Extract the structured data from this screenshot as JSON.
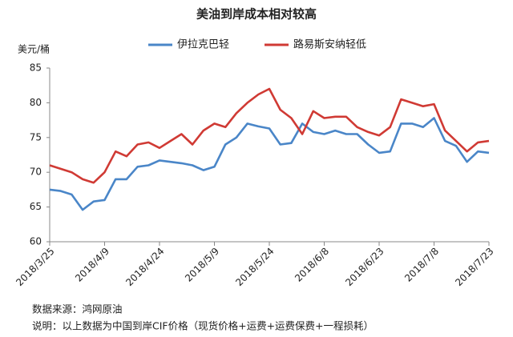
{
  "chart_data": {
    "type": "line",
    "title": "美油到岸成本相对较高",
    "y_label": "美元/桶",
    "x": [
      "2018/3/25",
      "2018/3/28",
      "2018/3/31",
      "2018/4/3",
      "2018/4/6",
      "2018/4/9",
      "2018/4/12",
      "2018/4/15",
      "2018/4/18",
      "2018/4/21",
      "2018/4/24",
      "2018/4/27",
      "2018/4/30",
      "2018/5/3",
      "2018/5/6",
      "2018/5/9",
      "2018/5/12",
      "2018/5/15",
      "2018/5/18",
      "2018/5/21",
      "2018/5/24",
      "2018/5/27",
      "2018/5/30",
      "2018/6/2",
      "2018/6/5",
      "2018/6/8",
      "2018/6/11",
      "2018/6/14",
      "2018/6/17",
      "2018/6/20",
      "2018/6/23",
      "2018/6/26",
      "2018/6/29",
      "2018/7/2",
      "2018/7/5",
      "2018/7/8",
      "2018/7/11",
      "2018/7/14",
      "2018/7/17",
      "2018/7/20",
      "2018/7/23"
    ],
    "series": [
      {
        "name": "伊拉克巴轻",
        "color": "#4a86c8",
        "values": [
          67.5,
          67.3,
          66.8,
          64.6,
          65.8,
          66.0,
          69.0,
          69.0,
          70.8,
          71.0,
          71.7,
          71.5,
          71.3,
          71.0,
          70.3,
          70.8,
          74.0,
          75.0,
          77.0,
          76.6,
          76.3,
          74.0,
          74.2,
          77.0,
          75.8,
          75.5,
          76.0,
          75.5,
          75.5,
          74.0,
          72.8,
          73.0,
          77.0,
          77.0,
          76.5,
          77.8,
          74.5,
          73.8,
          71.5,
          73.0,
          72.8
        ]
      },
      {
        "name": "路易斯安纳轻低",
        "color": "#d03a34",
        "values": [
          71.0,
          70.5,
          70.0,
          69.0,
          68.5,
          70.0,
          73.0,
          72.3,
          74.0,
          74.3,
          73.5,
          74.5,
          75.5,
          74.0,
          76.0,
          77.0,
          76.5,
          78.5,
          80.0,
          81.2,
          82.0,
          79.0,
          77.8,
          75.5,
          78.8,
          77.8,
          78.0,
          78.0,
          76.5,
          75.8,
          75.3,
          76.5,
          80.5,
          80.0,
          79.5,
          79.8,
          76.0,
          74.5,
          73.0,
          74.3,
          74.5
        ]
      }
    ],
    "xlim": [
      "2018/3/25",
      "2018/7/23"
    ],
    "xticks": [
      "2018/3/25",
      "2018/4/9",
      "2018/4/24",
      "2018/5/9",
      "2018/5/24",
      "2018/6/8",
      "2018/6/23",
      "2018/7/8",
      "2018/7/23"
    ],
    "ylim": [
      60,
      85
    ],
    "yticks": [
      60,
      65,
      70,
      75,
      80,
      85
    ],
    "grid": false,
    "source": "数据来源：鸿网原油",
    "note": "说明：以上数据为中国到岸CIF价格（现货价格+运费+运费保费+一程损耗）"
  }
}
